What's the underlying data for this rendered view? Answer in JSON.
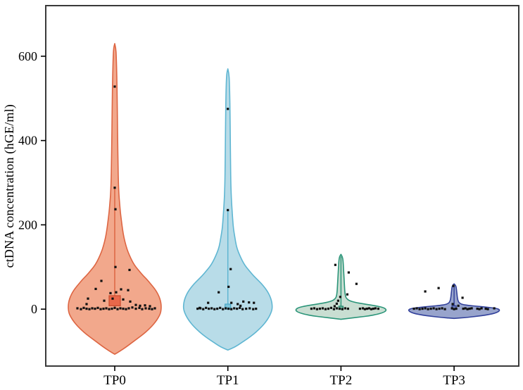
{
  "figure": {
    "background": "#ffffff",
    "frame_color": "#3a3a3a"
  },
  "chart_data": {
    "type": "violin",
    "title": "",
    "xlabel": "",
    "ylabel": "ctDNA concentration (hGE/ml)",
    "categories": [
      "TP0",
      "TP1",
      "TP2",
      "TP3"
    ],
    "yticks": [
      0,
      200,
      400,
      600
    ],
    "ylim": [
      -135,
      720
    ],
    "grid": false,
    "legend": false,
    "point_color": "#111111",
    "groups": [
      {
        "label": "TP0",
        "fill": "#F2A88C",
        "stroke": "#DD6542",
        "violin_max": 630,
        "violin_min": -107,
        "profile": [
          [
            630,
            0
          ],
          [
            620,
            1.5
          ],
          [
            600,
            2.2
          ],
          [
            550,
            3
          ],
          [
            500,
            3.5
          ],
          [
            450,
            3.8
          ],
          [
            400,
            4.2
          ],
          [
            350,
            4.6
          ],
          [
            300,
            5.2
          ],
          [
            270,
            6
          ],
          [
            250,
            7
          ],
          [
            230,
            8
          ],
          [
            210,
            9.5
          ],
          [
            190,
            11
          ],
          [
            170,
            13
          ],
          [
            150,
            16
          ],
          [
            135,
            19
          ],
          [
            120,
            23
          ],
          [
            110,
            26
          ],
          [
            100,
            30
          ],
          [
            90,
            35
          ],
          [
            80,
            40
          ],
          [
            70,
            46
          ],
          [
            60,
            51
          ],
          [
            50,
            56
          ],
          [
            40,
            60
          ],
          [
            30,
            63
          ],
          [
            20,
            65
          ],
          [
            10,
            66
          ],
          [
            0,
            66
          ],
          [
            -10,
            65
          ],
          [
            -20,
            62
          ],
          [
            -30,
            58
          ],
          [
            -40,
            53
          ],
          [
            -50,
            47
          ],
          [
            -60,
            40
          ],
          [
            -70,
            32
          ],
          [
            -80,
            24
          ],
          [
            -90,
            16
          ],
          [
            -100,
            7
          ],
          [
            -107,
            0
          ]
        ],
        "box": {
          "q1": 8,
          "q3": 32,
          "half_width": 8,
          "fill": "#E9684A",
          "stroke": "#C94B2D"
        },
        "whisker": {
          "low": 0,
          "high": 290
        },
        "points": [
          [
            0,
            528
          ],
          [
            0,
            288
          ],
          [
            1,
            237
          ],
          [
            1,
            100
          ],
          [
            21,
            93
          ],
          [
            -19,
            67
          ],
          [
            -27,
            48
          ],
          [
            9,
            47
          ],
          [
            19,
            45
          ],
          [
            2,
            40
          ],
          [
            -6,
            38
          ],
          [
            -38,
            25
          ],
          [
            -3,
            25
          ],
          [
            12,
            23
          ],
          [
            -15,
            20
          ],
          [
            22,
            18
          ],
          [
            -40,
            12
          ],
          [
            30,
            10
          ],
          [
            43,
            9
          ],
          [
            36,
            8
          ],
          [
            50,
            7
          ],
          [
            -53,
            2
          ],
          [
            -48,
            0
          ],
          [
            -44,
            3
          ],
          [
            -40,
            1
          ],
          [
            -36,
            0
          ],
          [
            -32,
            2
          ],
          [
            -28,
            1
          ],
          [
            -24,
            3
          ],
          [
            -20,
            0
          ],
          [
            -16,
            1
          ],
          [
            -12,
            2
          ],
          [
            -8,
            0
          ],
          [
            -4,
            1
          ],
          [
            0,
            3
          ],
          [
            4,
            0
          ],
          [
            8,
            2
          ],
          [
            12,
            1
          ],
          [
            16,
            0
          ],
          [
            20,
            2
          ],
          [
            25,
            4
          ],
          [
            30,
            1
          ],
          [
            35,
            3
          ],
          [
            39,
            0
          ],
          [
            44,
            2
          ],
          [
            49,
            1
          ],
          [
            53,
            0
          ],
          [
            57,
            2
          ]
        ]
      },
      {
        "label": "TP1",
        "fill": "#B8DCE8",
        "stroke": "#5FB6D2",
        "violin_max": 570,
        "violin_min": -97,
        "profile": [
          [
            570,
            0
          ],
          [
            560,
            1.5
          ],
          [
            540,
            2.2
          ],
          [
            500,
            2.8
          ],
          [
            450,
            3.2
          ],
          [
            400,
            3.5
          ],
          [
            350,
            3.8
          ],
          [
            300,
            4.2
          ],
          [
            270,
            4.8
          ],
          [
            250,
            5.4
          ],
          [
            230,
            6.2
          ],
          [
            210,
            7
          ],
          [
            190,
            8
          ],
          [
            170,
            10
          ],
          [
            150,
            12
          ],
          [
            135,
            15
          ],
          [
            120,
            19
          ],
          [
            110,
            22
          ],
          [
            100,
            26
          ],
          [
            90,
            31
          ],
          [
            80,
            36
          ],
          [
            70,
            42
          ],
          [
            60,
            48
          ],
          [
            50,
            53
          ],
          [
            40,
            57
          ],
          [
            30,
            60
          ],
          [
            20,
            62
          ],
          [
            10,
            63
          ],
          [
            0,
            63
          ],
          [
            -10,
            61
          ],
          [
            -20,
            58
          ],
          [
            -30,
            54
          ],
          [
            -40,
            49
          ],
          [
            -50,
            43
          ],
          [
            -60,
            36
          ],
          [
            -70,
            28
          ],
          [
            -80,
            19
          ],
          [
            -90,
            10
          ],
          [
            -97,
            0
          ]
        ],
        "box": {
          "q1": 0,
          "q3": 12,
          "half_width": 4,
          "fill": "#7CC4DA",
          "stroke": "#4AA6C4"
        },
        "whisker": {
          "low": 0,
          "high": 235
        },
        "points": [
          [
            0,
            475
          ],
          [
            0,
            235
          ],
          [
            4,
            95
          ],
          [
            1,
            53
          ],
          [
            -13,
            40
          ],
          [
            22,
            18
          ],
          [
            30,
            16
          ],
          [
            -28,
            15
          ],
          [
            5,
            15
          ],
          [
            37,
            15
          ],
          [
            14,
            12
          ],
          [
            18,
            8
          ],
          [
            -40,
            3
          ],
          [
            -43,
            1
          ],
          [
            -39,
            2
          ],
          [
            -35,
            0
          ],
          [
            -31,
            3
          ],
          [
            -27,
            1
          ],
          [
            -23,
            2
          ],
          [
            -19,
            0
          ],
          [
            -15,
            1
          ],
          [
            -11,
            3
          ],
          [
            -7,
            0
          ],
          [
            -3,
            2
          ],
          [
            1,
            1
          ],
          [
            5,
            0
          ],
          [
            9,
            2
          ],
          [
            13,
            1
          ],
          [
            17,
            3
          ],
          [
            21,
            0
          ],
          [
            26,
            1
          ],
          [
            31,
            2
          ],
          [
            36,
            0
          ],
          [
            40,
            1
          ]
        ]
      },
      {
        "label": "TP2",
        "fill": "#C9DED2",
        "stroke": "#2B9579",
        "violin_max": 130,
        "violin_min": -24,
        "profile": [
          [
            130,
            0
          ],
          [
            125,
            2
          ],
          [
            115,
            3
          ],
          [
            100,
            3.5
          ],
          [
            85,
            4
          ],
          [
            70,
            4.5
          ],
          [
            55,
            5
          ],
          [
            40,
            5.5
          ],
          [
            30,
            6.5
          ],
          [
            25,
            8
          ],
          [
            20,
            12
          ],
          [
            16,
            20
          ],
          [
            13,
            30
          ],
          [
            10,
            42
          ],
          [
            7,
            52
          ],
          [
            4,
            60
          ],
          [
            0,
            64
          ],
          [
            -4,
            64
          ],
          [
            -8,
            60
          ],
          [
            -12,
            52
          ],
          [
            -16,
            40
          ],
          [
            -19,
            25
          ],
          [
            -22,
            10
          ],
          [
            -24,
            0
          ]
        ],
        "box": {
          "q1": 0,
          "q3": 7,
          "half_width": 3,
          "fill": "#6FB9A2",
          "stroke": "#1F8268"
        },
        "whisker": {
          "low": 0,
          "high": 125
        },
        "points": [
          [
            -8,
            105
          ],
          [
            11,
            87
          ],
          [
            22,
            60
          ],
          [
            9,
            35
          ],
          [
            -1,
            29
          ],
          [
            -4,
            20
          ],
          [
            -6,
            13
          ],
          [
            -9,
            7
          ],
          [
            -42,
            1
          ],
          [
            -38,
            2
          ],
          [
            -34,
            0
          ],
          [
            -30,
            1
          ],
          [
            -26,
            2
          ],
          [
            -22,
            0
          ],
          [
            -18,
            1
          ],
          [
            -14,
            3
          ],
          [
            -10,
            0
          ],
          [
            -6,
            2
          ],
          [
            -2,
            1
          ],
          [
            2,
            0
          ],
          [
            6,
            2
          ],
          [
            10,
            1
          ],
          [
            27,
            1
          ],
          [
            31,
            2
          ],
          [
            34,
            0
          ],
          [
            37,
            1
          ],
          [
            40,
            2
          ],
          [
            43,
            0
          ],
          [
            46,
            1
          ],
          [
            49,
            2
          ],
          [
            53,
            1
          ]
        ]
      },
      {
        "label": "TP3",
        "fill": "#98A4CC",
        "stroke": "#32419B",
        "violin_max": 60,
        "violin_min": -22,
        "profile": [
          [
            60,
            0
          ],
          [
            57,
            2
          ],
          [
            52,
            3
          ],
          [
            45,
            3.5
          ],
          [
            38,
            4
          ],
          [
            30,
            4.5
          ],
          [
            24,
            5
          ],
          [
            18,
            6
          ],
          [
            14,
            8
          ],
          [
            11,
            12
          ],
          [
            9,
            20
          ],
          [
            7,
            32
          ],
          [
            5,
            45
          ],
          [
            3,
            55
          ],
          [
            1,
            62
          ],
          [
            -2,
            65
          ],
          [
            -6,
            63
          ],
          [
            -10,
            57
          ],
          [
            -14,
            46
          ],
          [
            -17,
            32
          ],
          [
            -20,
            16
          ],
          [
            -22,
            0
          ]
        ],
        "box": {
          "q1": 0,
          "q3": 8,
          "half_width": 3,
          "fill": "#6B7BB8",
          "stroke": "#2A3A8C"
        },
        "whisker": {
          "low": 0,
          "high": 55
        },
        "points": [
          [
            -1,
            55
          ],
          [
            -22,
            50
          ],
          [
            -41,
            42
          ],
          [
            12,
            27
          ],
          [
            -2,
            12
          ],
          [
            6,
            8
          ],
          [
            -57,
            1
          ],
          [
            -53,
            2
          ],
          [
            -49,
            0
          ],
          [
            -45,
            1
          ],
          [
            -41,
            2
          ],
          [
            -37,
            0
          ],
          [
            -33,
            1
          ],
          [
            -29,
            2
          ],
          [
            -25,
            0
          ],
          [
            -21,
            1
          ],
          [
            -17,
            2
          ],
          [
            -13,
            0
          ],
          [
            -3,
            2
          ],
          [
            0,
            0
          ],
          [
            3,
            1
          ],
          [
            13,
            1
          ],
          [
            16,
            2
          ],
          [
            19,
            0
          ],
          [
            22,
            1
          ],
          [
            25,
            2
          ],
          [
            33,
            1
          ],
          [
            36,
            0
          ],
          [
            39,
            2
          ],
          [
            45,
            1
          ],
          [
            48,
            0
          ],
          [
            57,
            2
          ]
        ]
      }
    ]
  }
}
